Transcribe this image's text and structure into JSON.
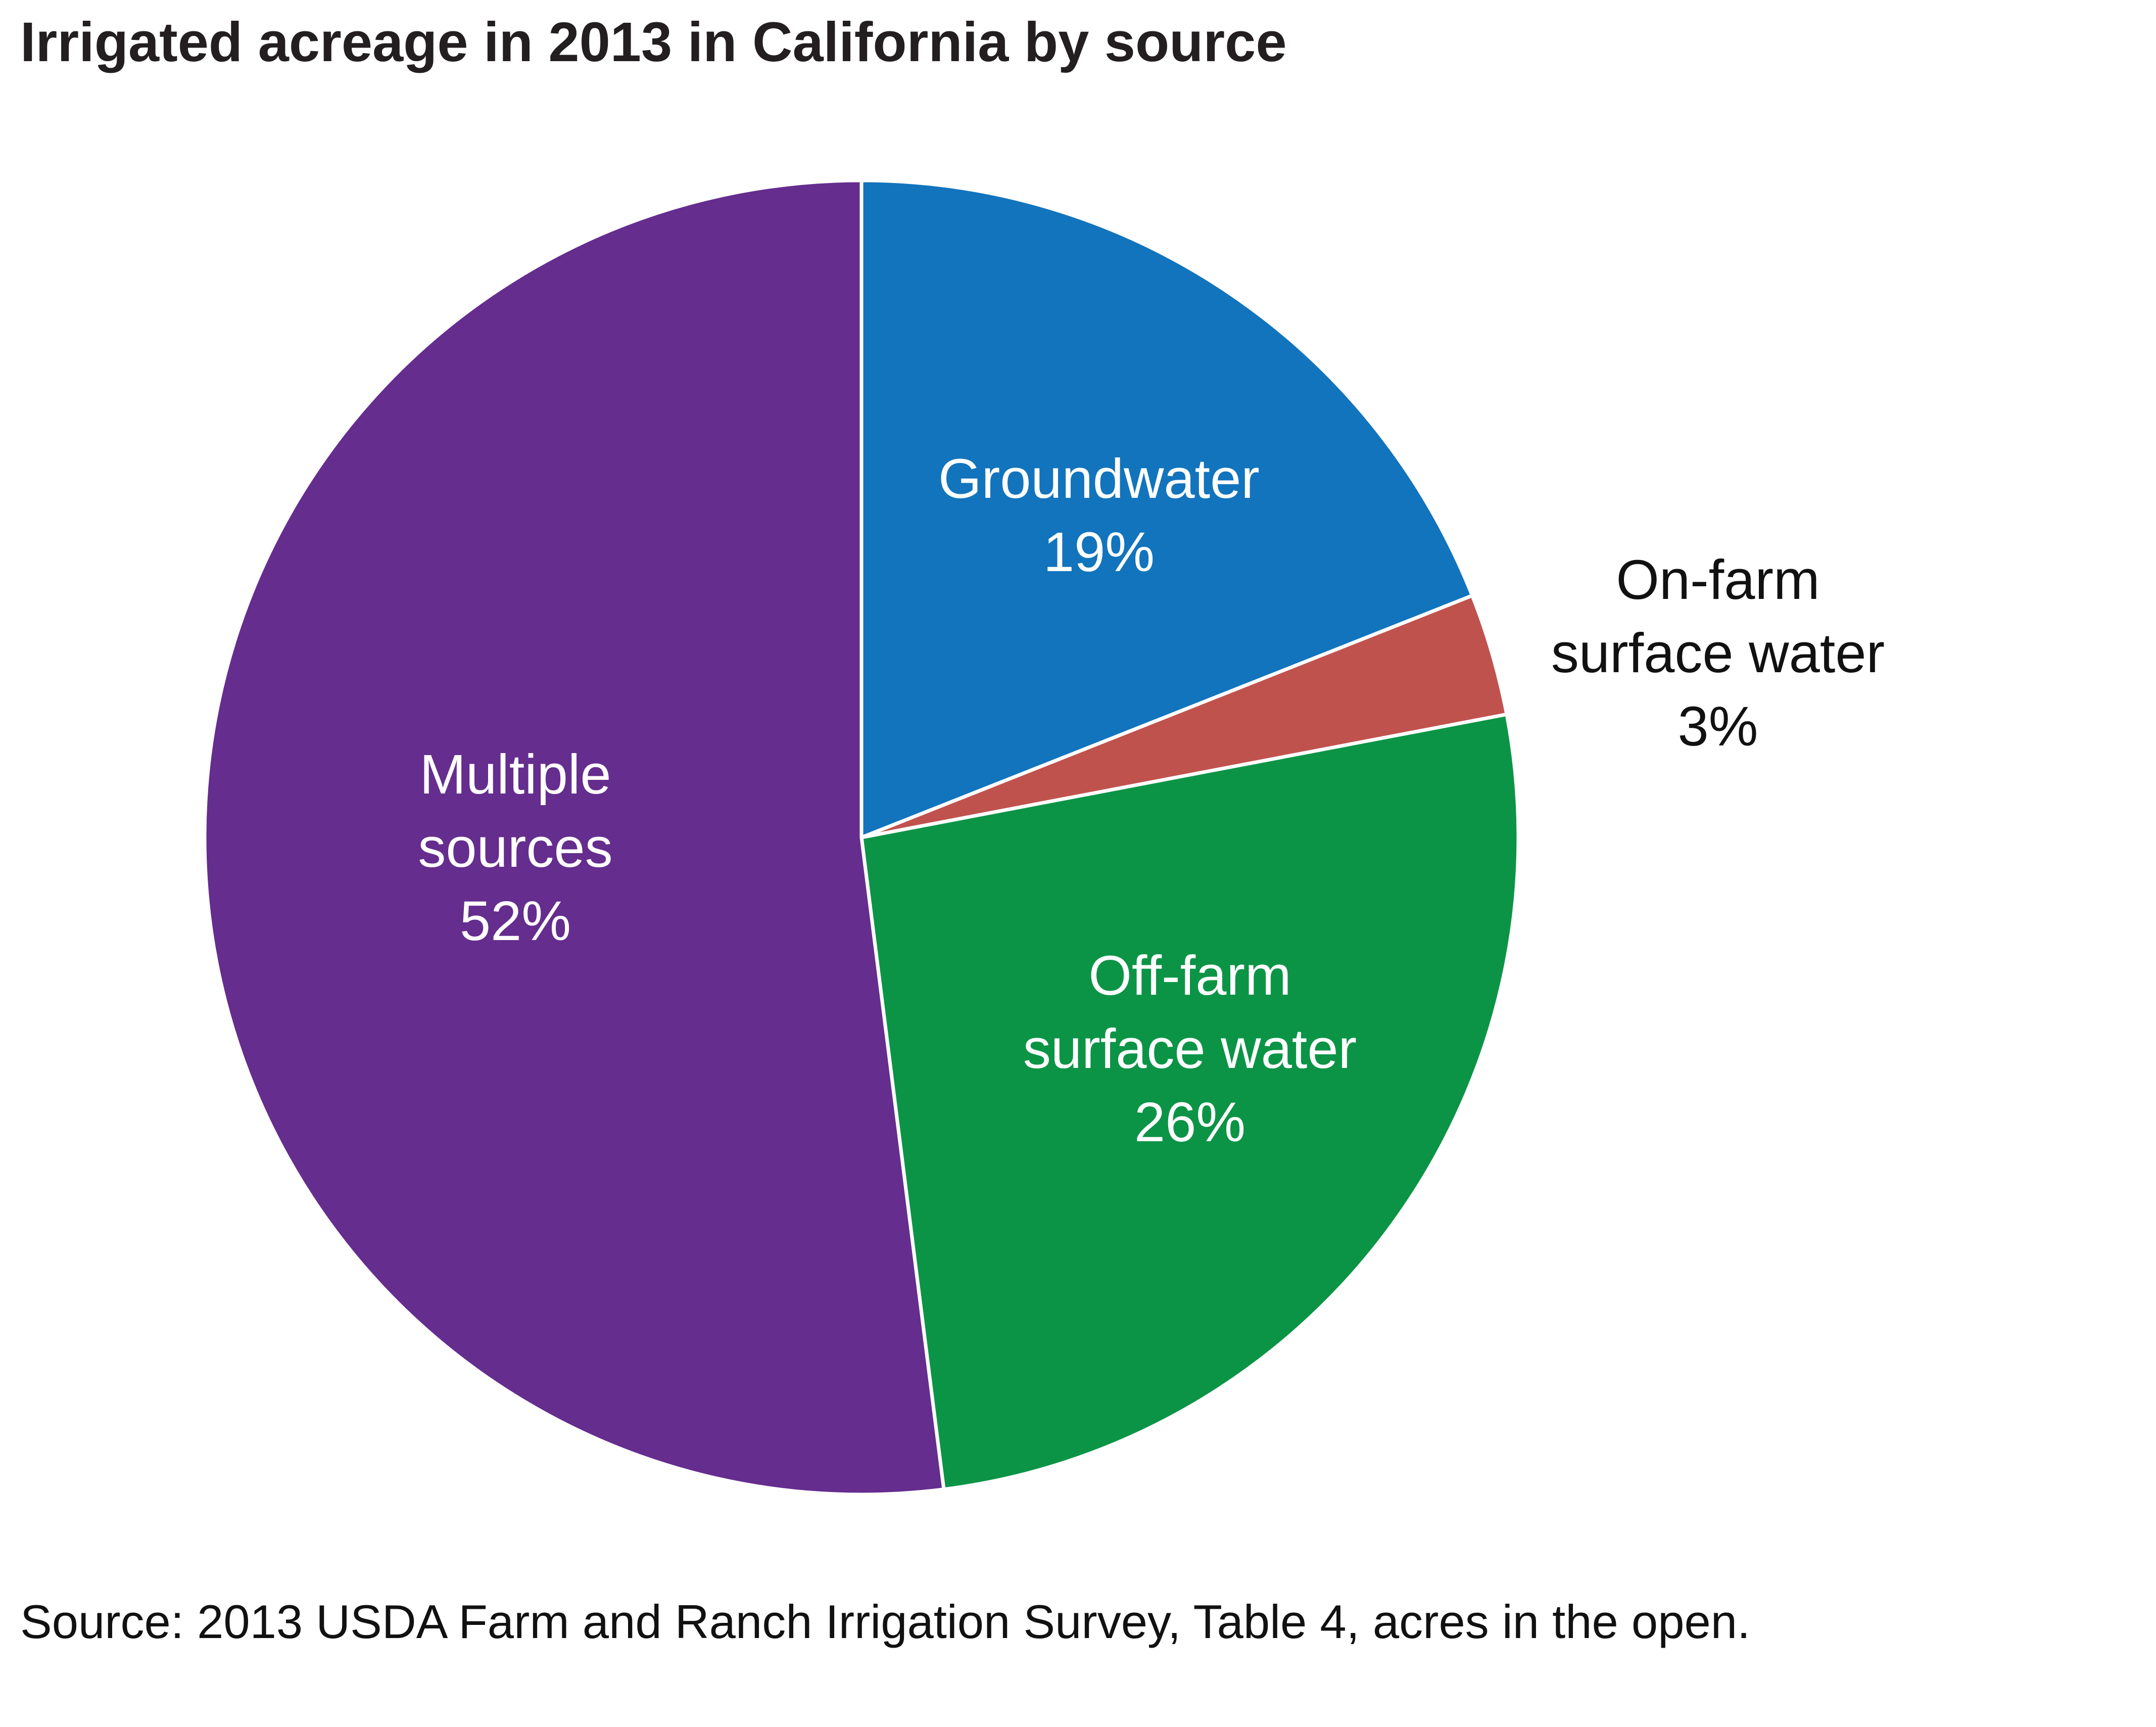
{
  "chart_data": {
    "type": "pie",
    "title": "Irrigated acreage in 2013 in California by source",
    "source": "Source: 2013 USDA Farm and Ranch Irrigation Survey, Table 4, acres in the open.",
    "slices": [
      {
        "name": "Groundwater",
        "lines": [
          "Groundwater"
        ],
        "value_label": "19%",
        "value": 19,
        "color": "#1274bc",
        "label_color": "#ffffff"
      },
      {
        "name": "On-farm surface water",
        "lines": [
          "On-farm",
          "surface water"
        ],
        "value_label": "3%",
        "value": 3,
        "color": "#c0524e",
        "label_color": "#111111"
      },
      {
        "name": "Off-farm surface water",
        "lines": [
          "Off-farm",
          "surface water"
        ],
        "value_label": "26%",
        "value": 26,
        "color": "#0c9446",
        "label_color": "#ffffff"
      },
      {
        "name": "Multiple sources",
        "lines": [
          "Multiple",
          "sources"
        ],
        "value_label": "52%",
        "value": 52,
        "color": "#652d8e",
        "label_color": "#ffffff"
      }
    ]
  }
}
